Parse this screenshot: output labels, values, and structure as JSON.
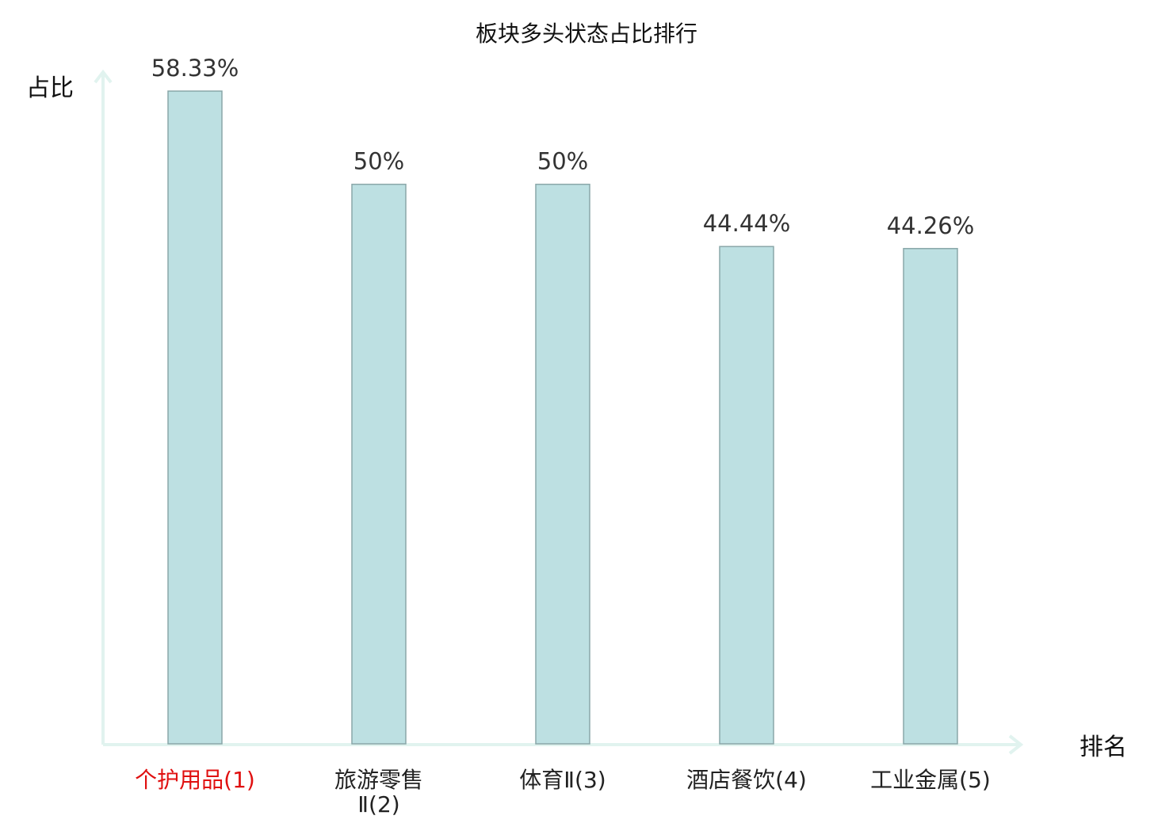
{
  "chart_data": {
    "type": "bar",
    "title": "板块多头状态占比排行",
    "ylabel": "占比",
    "xlabel": "排名",
    "categories": [
      [
        "个护用品(1)"
      ],
      [
        "旅游零售",
        "Ⅱ(2)"
      ],
      [
        "体育Ⅱ(3)"
      ],
      [
        "酒店餐饮(4)"
      ],
      [
        "工业金属(5)"
      ]
    ],
    "values": [
      58.33,
      50,
      50,
      44.44,
      44.26
    ],
    "value_labels": [
      "58.33%",
      "50%",
      "50%",
      "44.44%",
      "44.26%"
    ],
    "highlight_index": 0,
    "ylim": [
      0,
      58.33
    ],
    "grid": false,
    "legend": "none",
    "colors": {
      "bar_fill": "#bde0e2",
      "bar_stroke": "#8aa7a9",
      "axis": "#e1f3ef",
      "highlight_label": "#e01010",
      "label": "#222222",
      "value_label": "#333333"
    }
  }
}
